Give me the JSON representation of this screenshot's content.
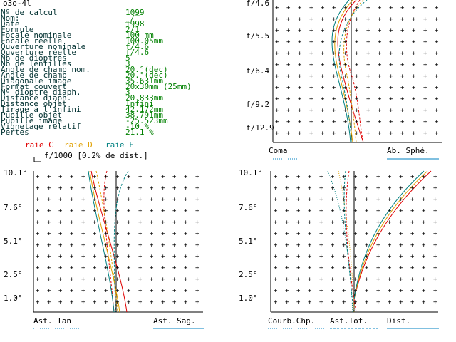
{
  "header": "o3o-4l",
  "fields": [
    {
      "label": "Nº de calcul",
      "value": "1099"
    },
    {
      "label": "Nom:",
      "value": "_/‾"
    },
    {
      "label": "Date",
      "value": "1998"
    },
    {
      "label": "Formule",
      "value": "2/1"
    },
    {
      "label": "Focale nominale",
      "value": "100    mm"
    },
    {
      "label": "Focale réelle",
      "value": "100.05mm"
    },
    {
      "label": "Ouverture nominale",
      "value": "f/4.6"
    },
    {
      "label": "Ouverture réelle",
      "value": "f/4.6"
    },
    {
      "label": "Nb de dioptres",
      "value": "5"
    },
    {
      "label": "Nb de lentilles",
      "value": "3"
    },
    {
      "label": "Angle de champ nom.",
      "value": "20.°(dec)"
    },
    {
      "label": "Angle de champ",
      "value": "20.°(dec)"
    },
    {
      "label": "Diagonale image",
      "value": "35.631mm"
    },
    {
      "label": "Format couvert",
      "value": "20x30mm (25mm)"
    },
    {
      "label": "Nº dioptre diaph.",
      "value": "3"
    },
    {
      "label": "Distance diaph.",
      "value": "20.833mm"
    },
    {
      "label": "Distance objet",
      "value": "Infini"
    },
    {
      "label": "Tirage à l'infini",
      "value": "42.172mm"
    },
    {
      "label": "Pupille objet",
      "value": "38.791mm"
    },
    {
      "label": "Pupille image",
      "value": "-25.523mm"
    },
    {
      "label": "Vignetage relatif",
      "value": "-10 %"
    },
    {
      "label": "Pertes",
      "value": "21.1 %"
    }
  ],
  "legend": [
    {
      "name": "raie C",
      "color": "#e00000"
    },
    {
      "name": "raie D",
      "color": "#e0a000"
    },
    {
      "name": "raie F",
      "color": "#008080"
    }
  ],
  "scale_note": "f/1000 [0.2% de dist.]",
  "panels": [
    {
      "y_labels": [
        "f/4.6",
        "f/5.5",
        "f/6.4",
        "f/9.2",
        "f/12.9"
      ],
      "x_labels": [
        "Coma",
        "Ab. Sphé."
      ]
    },
    {
      "y_labels": [
        "10.1°",
        "7.6°",
        "5.1°",
        "2.5°",
        "1.0°"
      ],
      "x_labels": [
        "Ast. Tan",
        "Ast. Sag."
      ]
    },
    {
      "y_labels": [
        "10.1°",
        "7.6°",
        "5.1°",
        "2.5°",
        "1.0°"
      ],
      "x_labels": [
        "Courb.Chp.",
        "Ast.Tot.",
        "Dist."
      ]
    }
  ]
}
